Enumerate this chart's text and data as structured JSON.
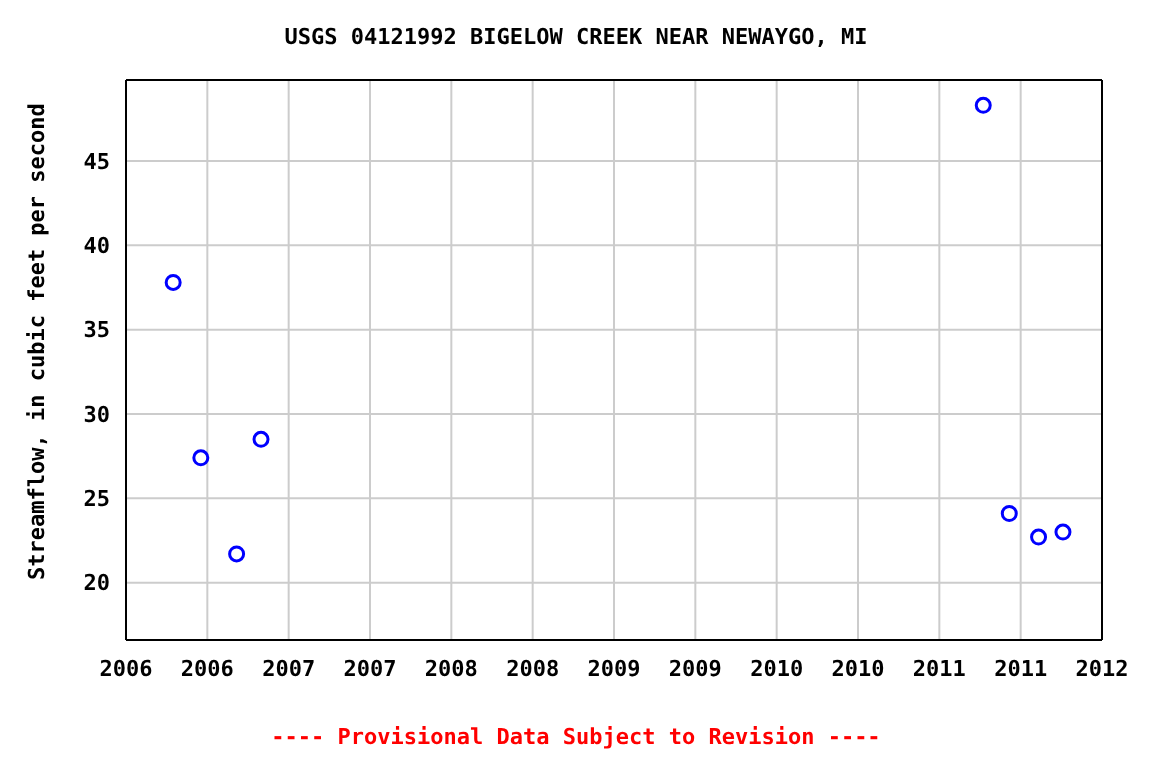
{
  "chart_data": {
    "type": "scatter",
    "title": "USGS 04121992 BIGELOW CREEK NEAR NEWAYGO, MI",
    "ylabel": "Streamflow, in cubic feet per second",
    "annotations": [
      "---- Provisional Data Subject to Revision ----"
    ],
    "x": [
      2006.29,
      2006.46,
      2006.68,
      2006.83,
      2011.27,
      2011.43,
      2011.61,
      2011.76
    ],
    "series": [
      {
        "color": "#0000ff",
        "values": [
          37.8,
          27.4,
          21.7,
          28.5,
          48.3,
          24.1,
          22.7,
          23.0
        ]
      }
    ],
    "xlim": [
      2006,
      2012
    ],
    "xticks": [
      {
        "value": 2006,
        "label": "2006"
      },
      {
        "value": 2006.5,
        "label": "2006"
      },
      {
        "value": 2007,
        "label": "2007"
      },
      {
        "value": 2007.5,
        "label": "2007"
      },
      {
        "value": 2008,
        "label": "2008"
      },
      {
        "value": 2008.5,
        "label": "2008"
      },
      {
        "value": 2009,
        "label": "2009"
      },
      {
        "value": 2009.5,
        "label": "2009"
      },
      {
        "value": 2010,
        "label": "2010"
      },
      {
        "value": 2010.5,
        "label": "2010"
      },
      {
        "value": 2011,
        "label": "2011"
      },
      {
        "value": 2011.5,
        "label": "2011"
      },
      {
        "value": 2012,
        "label": "2012"
      }
    ],
    "ylim": [
      16.6,
      49.8
    ],
    "yticks": [
      20,
      25,
      30,
      35,
      40,
      45
    ],
    "grid": true,
    "marker": "circle",
    "legend": false
  }
}
